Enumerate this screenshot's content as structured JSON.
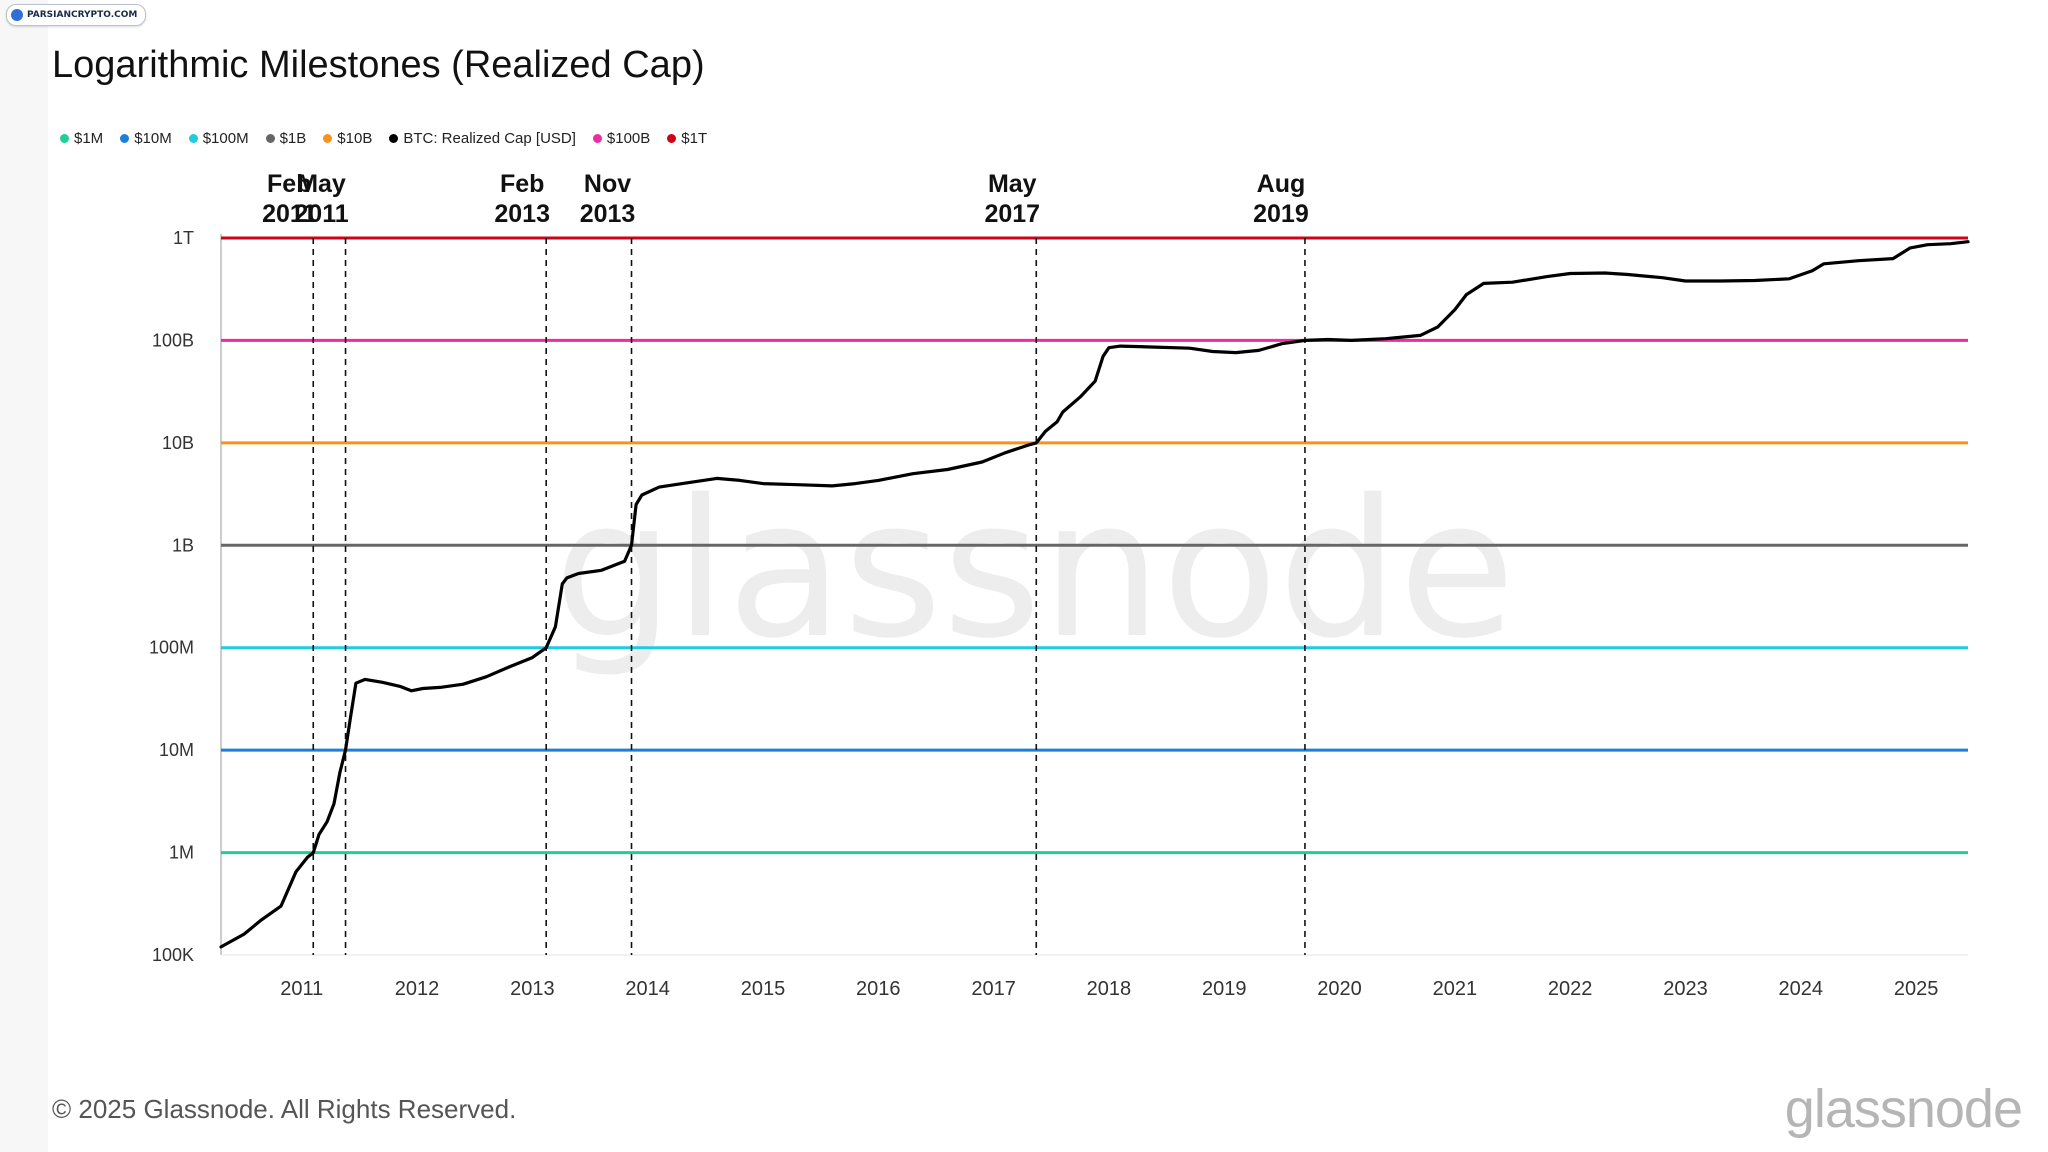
{
  "badge": {
    "text": "PARSIANCRYPTO.COM"
  },
  "title": "Logarithmic Milestones (Realized Cap)",
  "watermark": "glassnode",
  "footer": {
    "copyright": "© 2025 Glassnode. All Rights Reserved.",
    "logo": "glassnode"
  },
  "chart_data": {
    "type": "line",
    "title": "Logarithmic Milestones (Realized Cap)",
    "scale": "log",
    "ylim": [
      100000,
      1000000000000
    ],
    "xlim": [
      2010.3,
      2025.45
    ],
    "y_ticks": [
      {
        "value": 100000,
        "label": "100K"
      },
      {
        "value": 1000000,
        "label": "1M"
      },
      {
        "value": 10000000,
        "label": "10M"
      },
      {
        "value": 100000000,
        "label": "100M"
      },
      {
        "value": 1000000000,
        "label": "1B"
      },
      {
        "value": 10000000000,
        "label": "10B"
      },
      {
        "value": 100000000000,
        "label": "100B"
      },
      {
        "value": 1000000000000,
        "label": "1T"
      }
    ],
    "x_ticks": [
      {
        "value": 2011,
        "label": "2011"
      },
      {
        "value": 2012,
        "label": "2012"
      },
      {
        "value": 2013,
        "label": "2013"
      },
      {
        "value": 2014,
        "label": "2014"
      },
      {
        "value": 2015,
        "label": "2015"
      },
      {
        "value": 2016,
        "label": "2016"
      },
      {
        "value": 2017,
        "label": "2017"
      },
      {
        "value": 2018,
        "label": "2018"
      },
      {
        "value": 2019,
        "label": "2019"
      },
      {
        "value": 2020,
        "label": "2020"
      },
      {
        "value": 2021,
        "label": "2021"
      },
      {
        "value": 2022,
        "label": "2022"
      },
      {
        "value": 2023,
        "label": "2023"
      },
      {
        "value": 2024,
        "label": "2024"
      },
      {
        "value": 2025,
        "label": "2025"
      }
    ],
    "thresholds": [
      {
        "name": "$1M",
        "value": 1000000,
        "color": "#1fcf9a"
      },
      {
        "name": "$10M",
        "value": 10000000,
        "color": "#1e7ed8"
      },
      {
        "name": "$100M",
        "value": 100000000,
        "color": "#1ecbe1"
      },
      {
        "name": "$1B",
        "value": 1000000000,
        "color": "#666666"
      },
      {
        "name": "$10B",
        "value": 10000000000,
        "color": "#f7931a"
      },
      {
        "name": "$100B",
        "value": 100000000000,
        "color": "#ee2aa5"
      },
      {
        "name": "$1T",
        "value": 1000000000000,
        "color": "#d0021b"
      }
    ],
    "legend": [
      {
        "label": "$1M",
        "color": "#1fcf9a"
      },
      {
        "label": "$10M",
        "color": "#1e7ed8"
      },
      {
        "label": "$100M",
        "color": "#1ecbe1"
      },
      {
        "label": "$1B",
        "color": "#666666"
      },
      {
        "label": "$10B",
        "color": "#f7931a"
      },
      {
        "label": "BTC: Realized Cap [USD]",
        "color": "#000000"
      },
      {
        "label": "$100B",
        "color": "#ee2aa5"
      },
      {
        "label": "$1T",
        "color": "#d0021b"
      }
    ],
    "milestones": [
      {
        "label": [
          "Feb",
          "2011"
        ],
        "x": 2011.1
      },
      {
        "label": [
          "May",
          "2011"
        ],
        "x": 2011.38
      },
      {
        "label": [
          "Feb",
          "2013"
        ],
        "x": 2013.12
      },
      {
        "label": [
          "Nov",
          "2013"
        ],
        "x": 2013.86
      },
      {
        "label": [
          "May",
          "2017"
        ],
        "x": 2017.37
      },
      {
        "label": [
          "Aug",
          "2019"
        ],
        "x": 2019.7
      }
    ],
    "series": [
      {
        "name": "BTC: Realized Cap [USD]",
        "color": "#000000",
        "points": [
          [
            2010.3,
            120000
          ],
          [
            2010.5,
            160000
          ],
          [
            2010.65,
            220000
          ],
          [
            2010.82,
            300000
          ],
          [
            2010.95,
            650000
          ],
          [
            2011.05,
            900000
          ],
          [
            2011.1,
            1000000
          ],
          [
            2011.15,
            1500000
          ],
          [
            2011.22,
            2000000
          ],
          [
            2011.28,
            3000000
          ],
          [
            2011.33,
            6000000
          ],
          [
            2011.38,
            10000000
          ],
          [
            2011.42,
            20000000
          ],
          [
            2011.47,
            45000000
          ],
          [
            2011.55,
            49000000
          ],
          [
            2011.7,
            46000000
          ],
          [
            2011.85,
            42000000
          ],
          [
            2011.95,
            38000000
          ],
          [
            2012.05,
            40000000
          ],
          [
            2012.2,
            41000000
          ],
          [
            2012.4,
            44000000
          ],
          [
            2012.6,
            52000000
          ],
          [
            2012.8,
            65000000
          ],
          [
            2013.0,
            80000000
          ],
          [
            2013.12,
            100000000
          ],
          [
            2013.2,
            160000000
          ],
          [
            2013.26,
            420000000
          ],
          [
            2013.3,
            480000000
          ],
          [
            2013.4,
            530000000
          ],
          [
            2013.6,
            570000000
          ],
          [
            2013.8,
            700000000
          ],
          [
            2013.86,
            1000000000
          ],
          [
            2013.9,
            2500000000
          ],
          [
            2013.95,
            3100000000
          ],
          [
            2014.1,
            3700000000
          ],
          [
            2014.3,
            4000000000
          ],
          [
            2014.6,
            4500000000
          ],
          [
            2014.8,
            4300000000
          ],
          [
            2015.0,
            4000000000
          ],
          [
            2015.3,
            3900000000
          ],
          [
            2015.6,
            3800000000
          ],
          [
            2015.8,
            4000000000
          ],
          [
            2016.0,
            4300000000
          ],
          [
            2016.3,
            5000000000
          ],
          [
            2016.6,
            5500000000
          ],
          [
            2016.9,
            6500000000
          ],
          [
            2017.1,
            8000000000
          ],
          [
            2017.3,
            9500000000
          ],
          [
            2017.37,
            10000000000
          ],
          [
            2017.45,
            13000000000
          ],
          [
            2017.55,
            16000000000
          ],
          [
            2017.6,
            20000000000
          ],
          [
            2017.75,
            28000000000
          ],
          [
            2017.88,
            40000000000
          ],
          [
            2017.95,
            70000000000
          ],
          [
            2018.0,
            85000000000
          ],
          [
            2018.1,
            88000000000
          ],
          [
            2018.4,
            86000000000
          ],
          [
            2018.7,
            84000000000
          ],
          [
            2018.9,
            78000000000
          ],
          [
            2019.1,
            76000000000
          ],
          [
            2019.3,
            80000000000
          ],
          [
            2019.5,
            93000000000
          ],
          [
            2019.7,
            100000000000
          ],
          [
            2019.9,
            102000000000
          ],
          [
            2020.1,
            100000000000
          ],
          [
            2020.4,
            104000000000
          ],
          [
            2020.7,
            112000000000
          ],
          [
            2020.85,
            135000000000
          ],
          [
            2021.0,
            200000000000
          ],
          [
            2021.1,
            280000000000
          ],
          [
            2021.25,
            360000000000
          ],
          [
            2021.5,
            370000000000
          ],
          [
            2021.8,
            420000000000
          ],
          [
            2022.0,
            450000000000
          ],
          [
            2022.3,
            455000000000
          ],
          [
            2022.5,
            440000000000
          ],
          [
            2022.8,
            410000000000
          ],
          [
            2023.0,
            380000000000
          ],
          [
            2023.3,
            380000000000
          ],
          [
            2023.6,
            385000000000
          ],
          [
            2023.9,
            400000000000
          ],
          [
            2024.1,
            480000000000
          ],
          [
            2024.2,
            560000000000
          ],
          [
            2024.5,
            600000000000
          ],
          [
            2024.8,
            630000000000
          ],
          [
            2024.95,
            800000000000
          ],
          [
            2025.1,
            860000000000
          ],
          [
            2025.3,
            880000000000
          ],
          [
            2025.45,
            920000000000
          ]
        ]
      }
    ]
  }
}
